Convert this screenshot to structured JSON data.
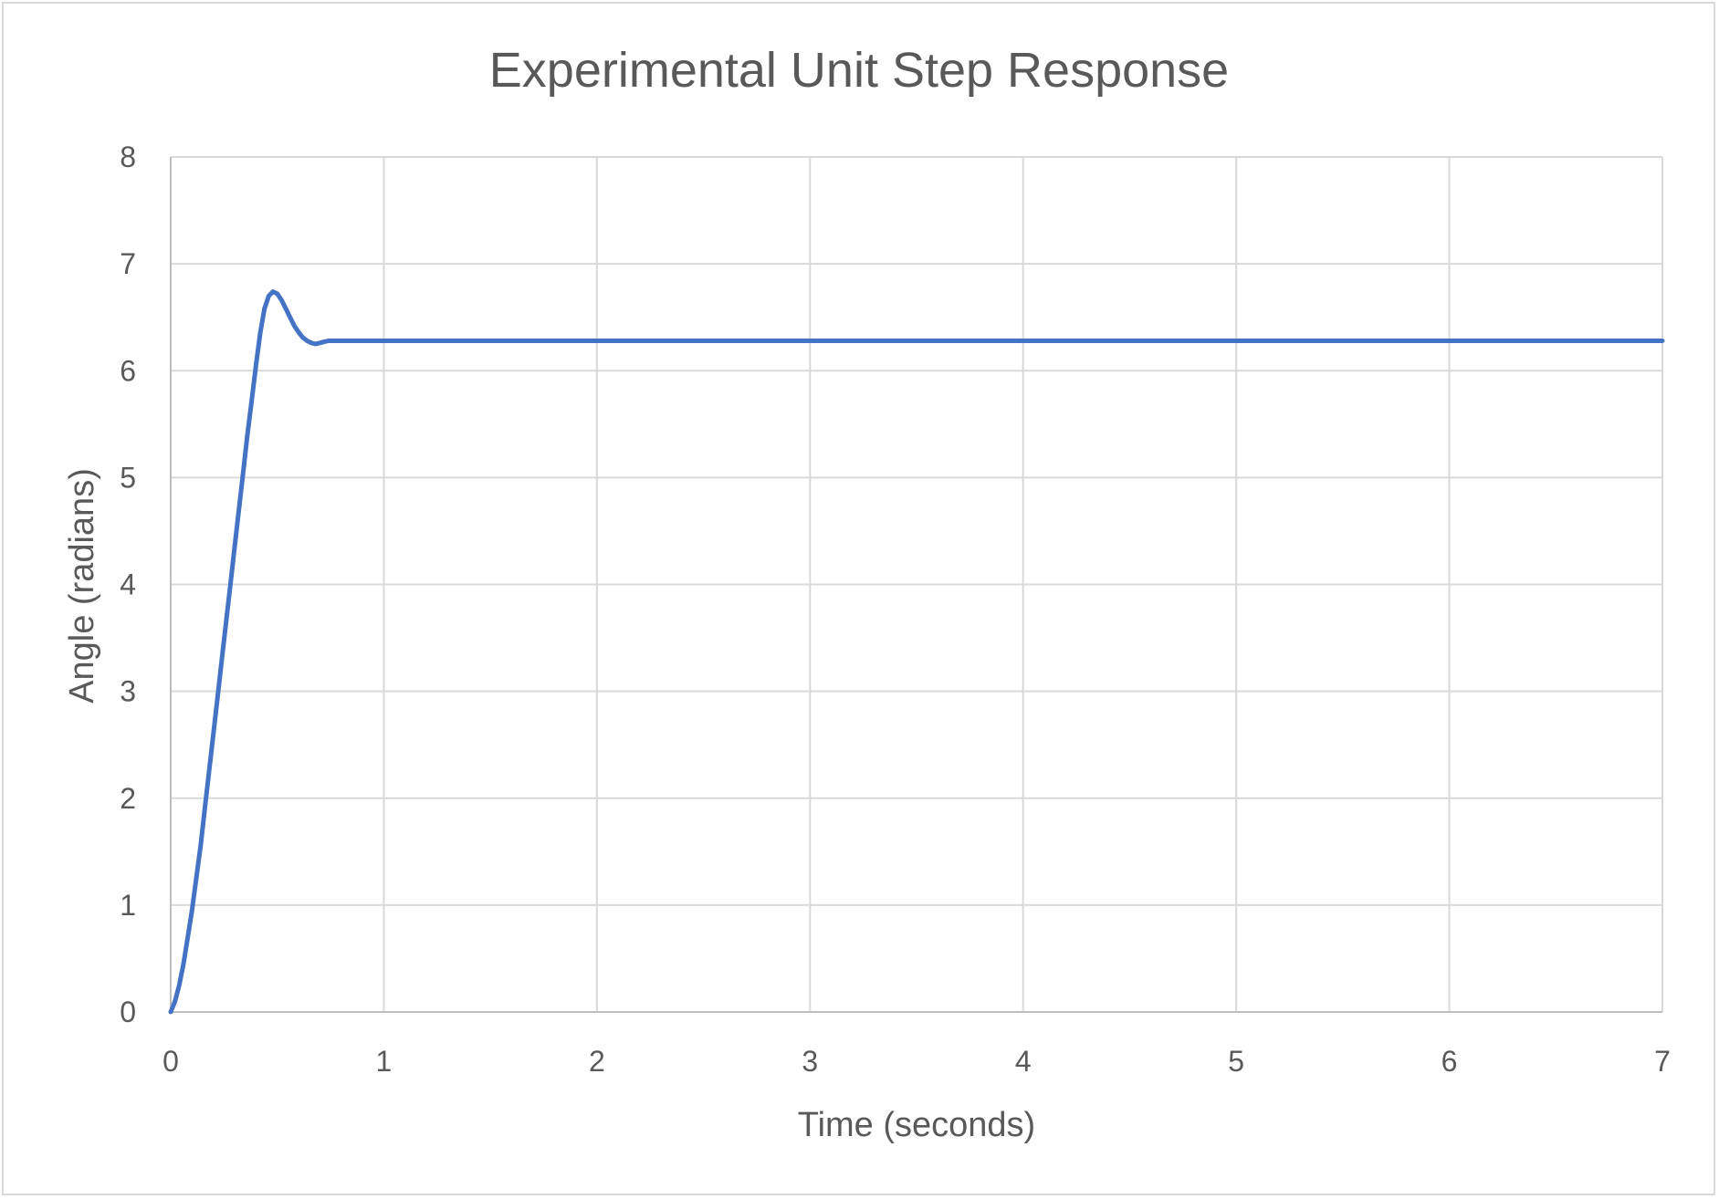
{
  "chart_data": {
    "type": "line",
    "title": "Experimental Unit Step Response",
    "xlabel": "Time (seconds)",
    "ylabel": "Angle (radians)",
    "xlim": [
      0,
      7
    ],
    "ylim": [
      0,
      8
    ],
    "xticks": [
      "0",
      "1",
      "2",
      "3",
      "4",
      "5",
      "6",
      "7"
    ],
    "yticks": [
      "0",
      "1",
      "2",
      "3",
      "4",
      "5",
      "6",
      "7",
      "8"
    ],
    "grid": true,
    "legend": "none",
    "series_color": "#4472c4",
    "series": [
      {
        "x": [
          0,
          0.02,
          0.04,
          0.06,
          0.08,
          0.1,
          0.12,
          0.14,
          0.16,
          0.18,
          0.2,
          0.22,
          0.24,
          0.26,
          0.28,
          0.3,
          0.32,
          0.34,
          0.36,
          0.38,
          0.4,
          0.42,
          0.44,
          0.46,
          0.48,
          0.5,
          0.52,
          0.54,
          0.56,
          0.58,
          0.6,
          0.62,
          0.64,
          0.66,
          0.68,
          0.7,
          0.72,
          0.74,
          0.76,
          0.8,
          1,
          2,
          3,
          4,
          5,
          6,
          7
        ],
        "y": [
          0,
          0.1,
          0.25,
          0.45,
          0.7,
          0.95,
          1.25,
          1.55,
          1.9,
          2.25,
          2.6,
          2.95,
          3.3,
          3.65,
          4.0,
          4.35,
          4.7,
          5.05,
          5.4,
          5.72,
          6.05,
          6.35,
          6.58,
          6.7,
          6.74,
          6.72,
          6.66,
          6.58,
          6.5,
          6.42,
          6.36,
          6.31,
          6.28,
          6.26,
          6.25,
          6.26,
          6.27,
          6.28,
          6.28,
          6.28,
          6.28,
          6.28,
          6.28,
          6.28,
          6.28,
          6.28,
          6.28
        ]
      }
    ]
  }
}
